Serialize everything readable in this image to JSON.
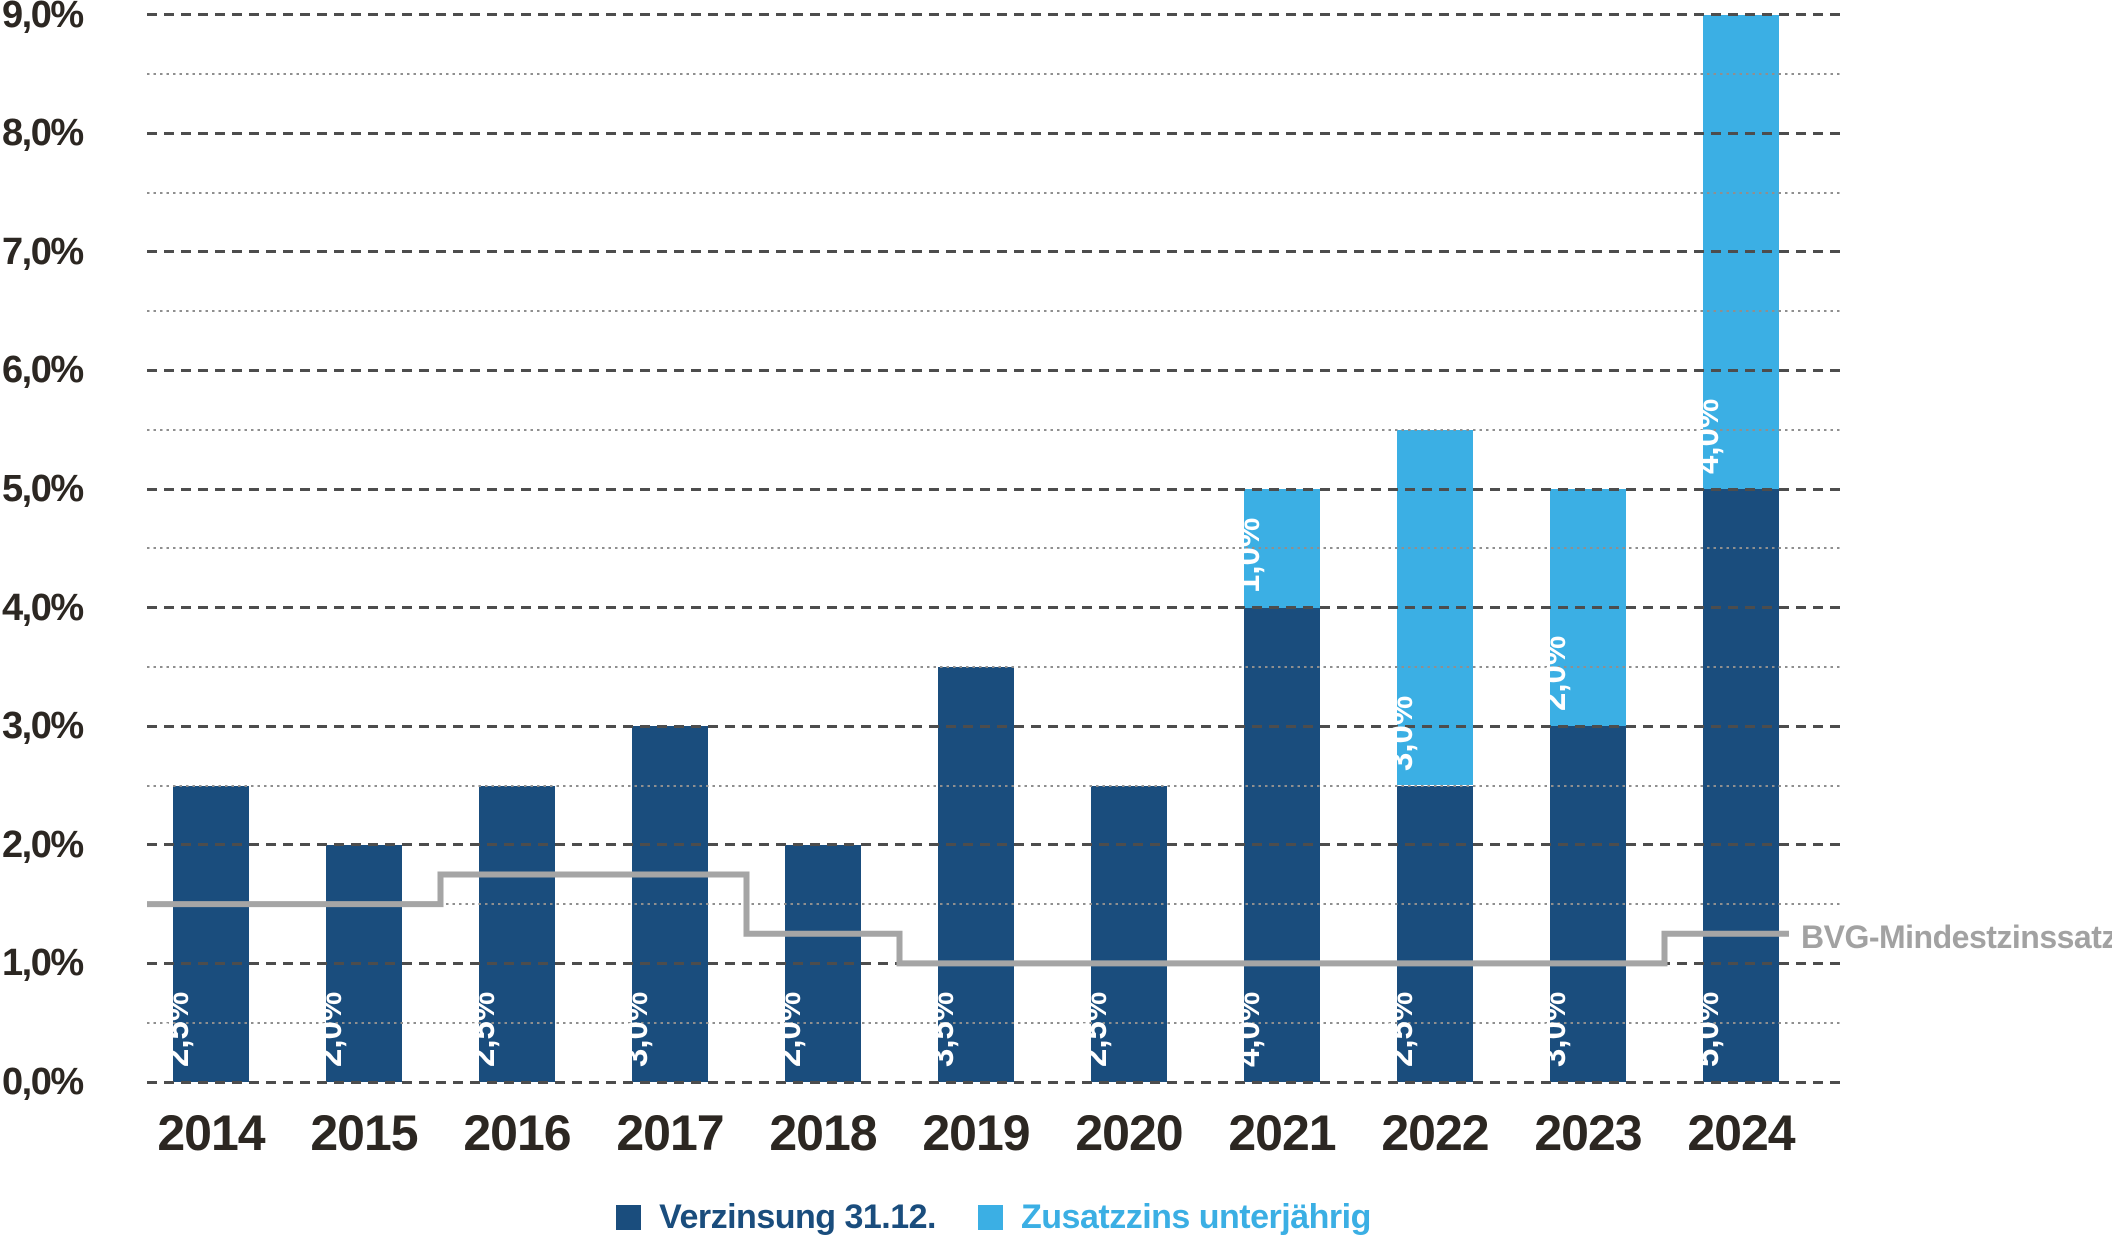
{
  "chart_data": {
    "type": "bar",
    "stacked": true,
    "orientation": "vertical",
    "background_color": "#ffffff",
    "categories": [
      "2014",
      "2015",
      "2016",
      "2017",
      "2018",
      "2019",
      "2020",
      "2021",
      "2022",
      "2023",
      "2024"
    ],
    "series": [
      {
        "name": "Verzinsung 31.12.",
        "color": "#1a4d7d",
        "values": [
          2.5,
          2.0,
          2.5,
          3.0,
          2.0,
          3.5,
          2.5,
          4.0,
          2.5,
          3.0,
          5.0
        ],
        "bar_labels": [
          "2,5%",
          "2,0%",
          "2,5%",
          "3,0%",
          "2,0%",
          "3,5%",
          "2,5%",
          "4,0%",
          "2,5%",
          "3,0%",
          "5,0%"
        ]
      },
      {
        "name": "Zusatzzins unterjährig",
        "color": "#3bafe4",
        "values": [
          0,
          0,
          0,
          0,
          0,
          0,
          0,
          1.0,
          3.0,
          2.0,
          4.0
        ],
        "bar_labels": [
          "",
          "",
          "",
          "",
          "",
          "",
          "",
          "1,0%",
          "3,0%",
          "2,0%",
          "4,0%"
        ]
      }
    ],
    "line_series": {
      "name": "BVG-Mindestzinssatz",
      "color": "#a5a5a5",
      "label_color": "#a2a2a2",
      "values": [
        1.5,
        1.5,
        1.75,
        1.75,
        1.25,
        1.0,
        1.0,
        1.0,
        1.0,
        1.0,
        1.25
      ],
      "style": "step"
    },
    "y_axis": {
      "min": 0,
      "max": 9,
      "major_tick_step": 1,
      "minor_tick_step": 0.5,
      "tick_labels": [
        "0,0%",
        "1,0%",
        "2,0%",
        "3,0%",
        "4,0%",
        "5,0%",
        "6,0%",
        "7,0%",
        "8,0%",
        "9,0%"
      ]
    },
    "grid": {
      "major": "dashed",
      "major_color": "#4d4d4d",
      "minor": "dotted",
      "minor_color": "#8f8f8f",
      "drawn_over_bars": true
    },
    "value_label_color": "#ffffff",
    "axis_text_color": "#2c2722",
    "legend": {
      "position": "bottom-center",
      "items": [
        {
          "label": "Verzinsung 31.12.",
          "color": "#1a4d7d"
        },
        {
          "label": "Zusatzzins unterjährig",
          "color": "#3bafe4"
        }
      ]
    }
  }
}
